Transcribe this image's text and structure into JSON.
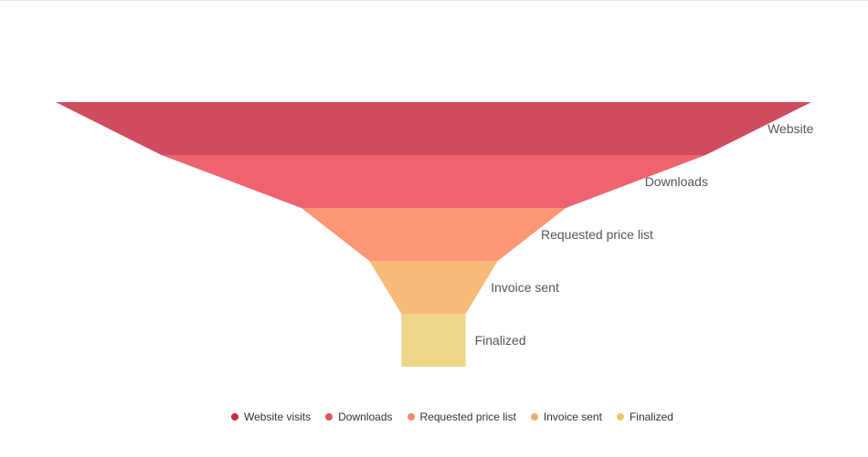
{
  "chart_data": {
    "type": "funnel",
    "title": "",
    "stages": [
      {
        "name": "Website visits",
        "label": "Website",
        "value": 100,
        "color": "#cf4c5e"
      },
      {
        "name": "Downloads",
        "label": "Downloads",
        "value": 72,
        "color": "#ef6370"
      },
      {
        "name": "Requested price list",
        "label": "Requested price list",
        "value": 35,
        "color": "#fb9677"
      },
      {
        "name": "Invoice sent",
        "label": "Invoice sent",
        "value": 17,
        "color": "#f8b97b"
      },
      {
        "name": "Finalized",
        "label": "Finalized",
        "value": 8.5,
        "color": "#efd58a"
      }
    ],
    "legend_position": "bottom",
    "legend_marker_colors": [
      "#c8283f",
      "#e0505f",
      "#f4876a",
      "#f3ad67",
      "#e8c86c"
    ]
  }
}
